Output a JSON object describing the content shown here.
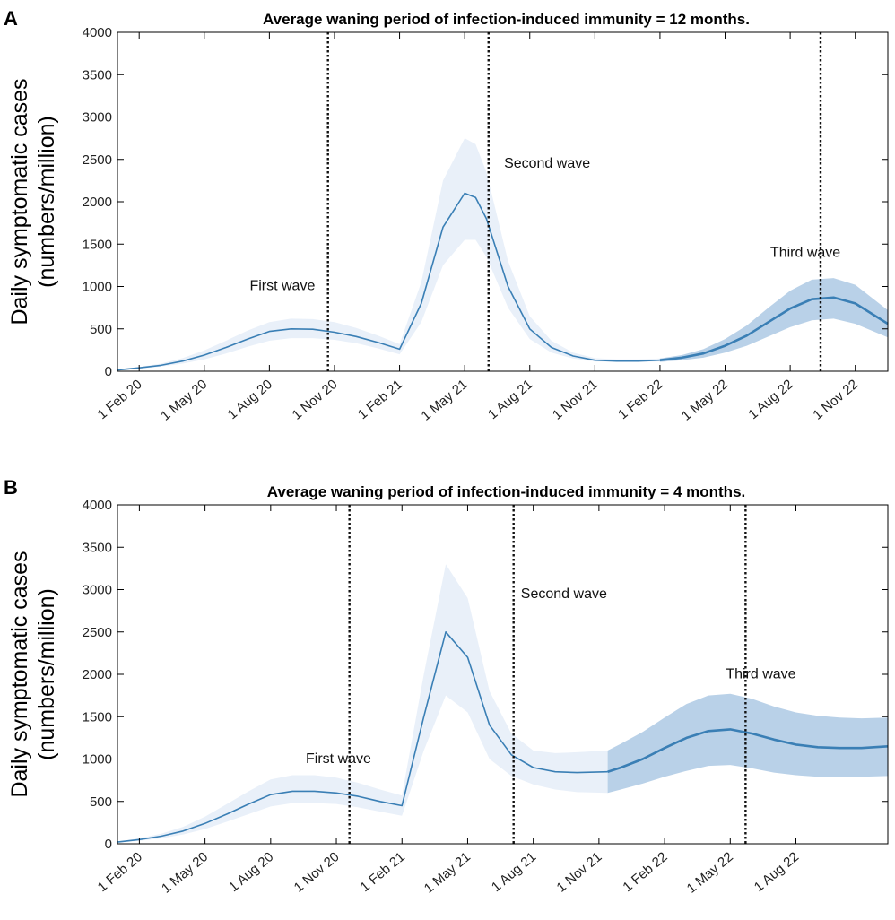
{
  "chart_data": [
    {
      "panel": "A",
      "type": "line",
      "title": "Average waning period of infection-induced immunity = 12 months.",
      "ylabel_line1": "Daily symptomatic cases",
      "ylabel_line2": "(numbers/million)",
      "ylim": [
        0,
        4000
      ],
      "yticks": [
        0,
        500,
        1000,
        1500,
        2000,
        2500,
        3000,
        3500,
        4000
      ],
      "xlim_month": [
        0,
        35.5
      ],
      "xticks": [
        {
          "m": 1,
          "label": "1 Feb 20"
        },
        {
          "m": 4,
          "label": "1 May 20"
        },
        {
          "m": 7,
          "label": "1 Aug 20"
        },
        {
          "m": 10,
          "label": "1 Nov 20"
        },
        {
          "m": 13,
          "label": "1 Feb 21"
        },
        {
          "m": 16,
          "label": "1 May 21"
        },
        {
          "m": 19,
          "label": "1 Aug 21"
        },
        {
          "m": 22,
          "label": "1 Nov 21"
        },
        {
          "m": 25,
          "label": "1 Feb 22"
        },
        {
          "m": 28,
          "label": "1 May 22"
        },
        {
          "m": 31,
          "label": "1 Aug 22"
        },
        {
          "m": 34,
          "label": "1 Nov 22"
        }
      ],
      "series": [
        {
          "name": "fitted",
          "x": [
            0,
            1,
            2,
            3,
            4,
            5,
            6,
            7,
            8,
            9,
            10,
            11,
            12,
            13,
            14,
            15,
            16,
            16.5,
            17,
            18,
            19,
            20,
            21,
            22,
            23,
            24,
            25
          ],
          "values": [
            15,
            40,
            70,
            120,
            190,
            280,
            380,
            470,
            500,
            495,
            460,
            410,
            340,
            260,
            800,
            1700,
            2100,
            2050,
            1800,
            1000,
            500,
            280,
            180,
            130,
            120,
            120,
            130
          ],
          "lower": [
            10,
            30,
            55,
            90,
            140,
            210,
            290,
            360,
            390,
            390,
            370,
            330,
            270,
            200,
            580,
            1250,
            1550,
            1550,
            1350,
            750,
            380,
            220,
            150,
            115,
            110,
            110,
            115
          ],
          "upper": [
            20,
            50,
            90,
            155,
            245,
            360,
            480,
            580,
            620,
            615,
            580,
            510,
            420,
            320,
            1050,
            2250,
            2750,
            2680,
            2350,
            1300,
            650,
            360,
            220,
            155,
            140,
            140,
            150
          ]
        },
        {
          "name": "projected",
          "x": [
            25,
            26,
            27,
            28,
            29,
            30,
            31,
            32,
            33,
            34,
            35.5
          ],
          "values": [
            130,
            160,
            210,
            300,
            420,
            580,
            740,
            850,
            870,
            800,
            560
          ],
          "lower": [
            110,
            130,
            160,
            220,
            300,
            410,
            520,
            600,
            620,
            560,
            400
          ],
          "upper": [
            150,
            190,
            260,
            380,
            540,
            750,
            950,
            1080,
            1100,
            1020,
            720
          ]
        }
      ],
      "vlines": [
        9.7,
        17.1,
        32.4
      ],
      "annotations": [
        {
          "label": "First wave",
          "m": 7.6,
          "y": 960
        },
        {
          "label": "Second wave",
          "m": 19.8,
          "y": 2400
        },
        {
          "label": "Third wave",
          "m": 31.7,
          "y": 1350
        }
      ]
    },
    {
      "panel": "B",
      "type": "line",
      "title": "Average waning period of infection-induced immunity = 4 months.",
      "ylabel_line1": "Daily symptomatic cases",
      "ylabel_line2": "(numbers/million)",
      "ylim": [
        0,
        4000
      ],
      "yticks": [
        0,
        500,
        1000,
        1500,
        2000,
        2500,
        3000,
        3500,
        4000
      ],
      "xlim_month": [
        0,
        35.2
      ],
      "xticks": [
        {
          "m": 1,
          "label": "1 Feb 20"
        },
        {
          "m": 4,
          "label": "1 May 20"
        },
        {
          "m": 7,
          "label": "1 Aug 20"
        },
        {
          "m": 10,
          "label": "1 Nov 20"
        },
        {
          "m": 13,
          "label": "1 Feb 21"
        },
        {
          "m": 16,
          "label": "1 May 21"
        },
        {
          "m": 19,
          "label": "1 Aug 21"
        },
        {
          "m": 22,
          "label": "1 Nov 21"
        },
        {
          "m": 25,
          "label": "1 Feb 22"
        },
        {
          "m": 28,
          "label": "1 May 22"
        },
        {
          "m": 31,
          "label": "1 Aug 22"
        }
      ],
      "series": [
        {
          "name": "fitted",
          "x": [
            0,
            1,
            2,
            3,
            4,
            5,
            6,
            7,
            8,
            9,
            10,
            11,
            12,
            13,
            14,
            15,
            16,
            17,
            18,
            19,
            20,
            21,
            22.4
          ],
          "values": [
            20,
            50,
            90,
            150,
            240,
            350,
            470,
            580,
            620,
            620,
            600,
            560,
            500,
            450,
            1500,
            2500,
            2200,
            1400,
            1050,
            900,
            850,
            840,
            850
          ],
          "lower": [
            15,
            35,
            65,
            110,
            175,
            260,
            350,
            440,
            480,
            480,
            470,
            430,
            380,
            330,
            1100,
            1750,
            1550,
            1000,
            800,
            700,
            640,
            610,
            600
          ],
          "upper": [
            25,
            65,
            120,
            200,
            320,
            470,
            620,
            760,
            810,
            810,
            780,
            720,
            640,
            570,
            2000,
            3300,
            2900,
            1800,
            1300,
            1100,
            1070,
            1080,
            1100
          ]
        },
        {
          "name": "projected",
          "x": [
            22.4,
            23,
            24,
            25,
            26,
            27,
            28,
            29,
            30,
            31,
            32,
            33,
            34,
            35.2
          ],
          "values": [
            850,
            900,
            1000,
            1130,
            1250,
            1330,
            1350,
            1300,
            1230,
            1170,
            1140,
            1130,
            1130,
            1150
          ],
          "lower": [
            600,
            640,
            710,
            790,
            860,
            920,
            930,
            890,
            840,
            810,
            790,
            790,
            790,
            800
          ],
          "upper": [
            1100,
            1180,
            1320,
            1490,
            1650,
            1750,
            1770,
            1710,
            1620,
            1550,
            1510,
            1490,
            1480,
            1490
          ]
        }
      ],
      "vlines": [
        10.6,
        18.1,
        28.7
      ],
      "annotations": [
        {
          "label": "First wave",
          "m": 10.1,
          "y": 950
        },
        {
          "label": "Second wave",
          "m": 20.4,
          "y": 2900
        },
        {
          "label": "Third wave",
          "m": 29.4,
          "y": 1950
        }
      ]
    }
  ],
  "colors": {
    "line": "#3a7fb5",
    "band_fitted": "#e9f0f9",
    "band_projected": "#b9d1e8",
    "vline": "#111111"
  }
}
